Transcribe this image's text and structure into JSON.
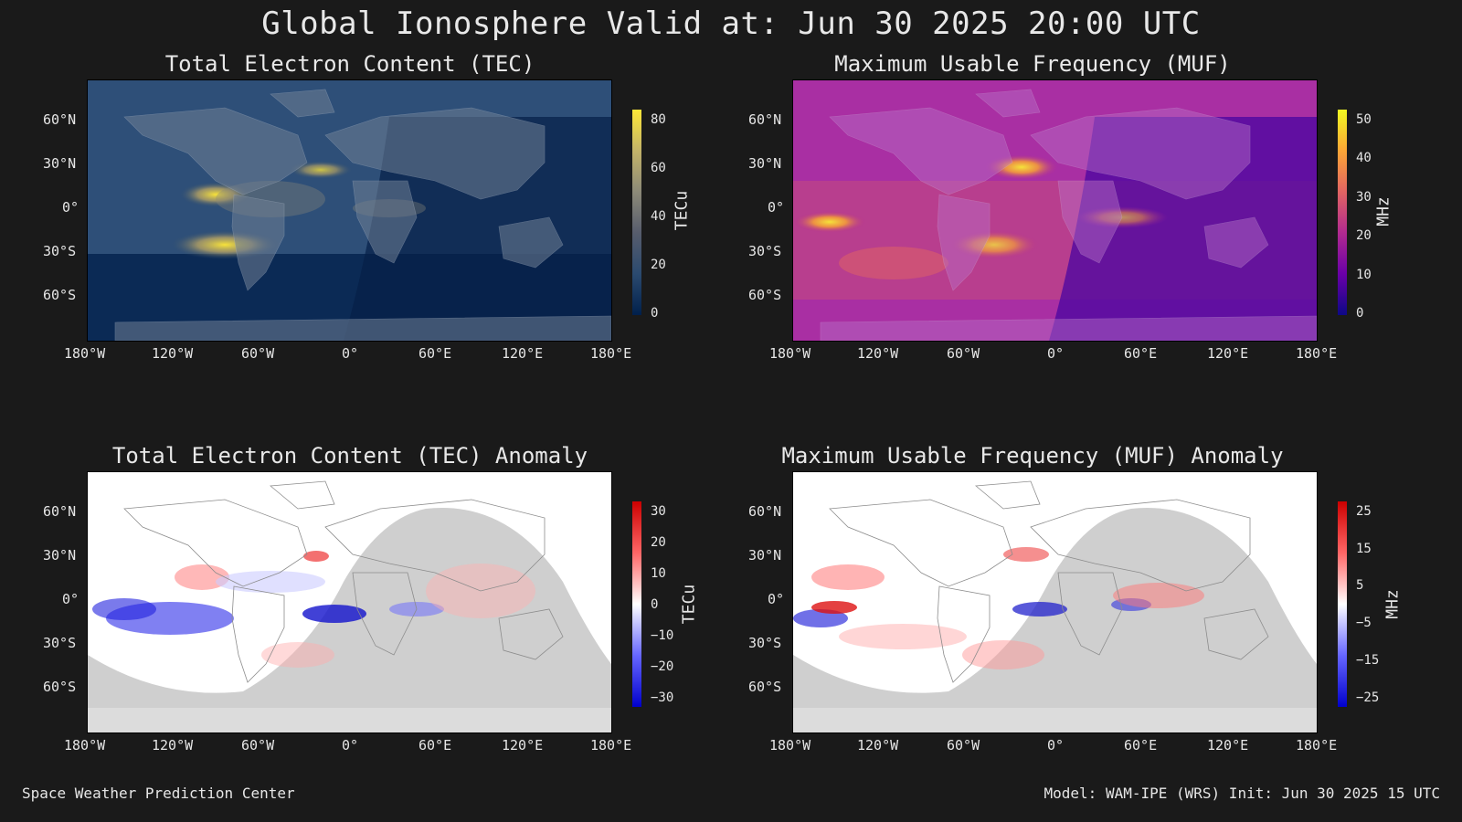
{
  "title": "Global Ionosphere Valid at: Jun 30 2025 20:00 UTC",
  "footer": {
    "left": "Space Weather Prediction Center",
    "right": "Model: WAM-IPE (WRS) Init: Jun 30 2025 15 UTC"
  },
  "axes": {
    "lat_ticks": [
      "60°N",
      "30°N",
      "0°",
      "30°S",
      "60°S"
    ],
    "lon_ticks": [
      "180°W",
      "120°W",
      "60°W",
      "0°",
      "60°E",
      "120°E",
      "180°E"
    ]
  },
  "panels": {
    "tec": {
      "title": "Total Electron Content (TEC)",
      "colorbar_label": "TECu",
      "colorbar_ticks": [
        "80",
        "60",
        "40",
        "20",
        "0"
      ],
      "colormap": [
        "#00204c",
        "#2b4a6f",
        "#575d6d",
        "#8c8a78",
        "#c3b369",
        "#fde737"
      ]
    },
    "muf": {
      "title": "Maximum Usable Frequency (MUF)",
      "colorbar_label": "MHz",
      "colorbar_ticks": [
        "50",
        "40",
        "30",
        "20",
        "10",
        "0"
      ],
      "colormap": [
        "#0d0887",
        "#6a00a8",
        "#b12a90",
        "#e16462",
        "#fca636",
        "#f0f921"
      ]
    },
    "tec_anomaly": {
      "title": "Total Electron Content (TEC) Anomaly",
      "colorbar_label": "TECu",
      "colorbar_ticks": [
        "30",
        "20",
        "10",
        "0",
        "−10",
        "−20",
        "−30"
      ],
      "colormap": [
        "#0000cc",
        "#6666ff",
        "#ccccff",
        "#ffffff",
        "#ffcccc",
        "#ff6666",
        "#cc0000"
      ]
    },
    "muf_anomaly": {
      "title": "Maximum Usable Frequency (MUF) Anomaly",
      "colorbar_label": "MHz",
      "colorbar_ticks": [
        "25",
        "15",
        "5",
        "−5",
        "−15",
        "−25"
      ],
      "colormap": [
        "#0000cc",
        "#6666ff",
        "#ccccff",
        "#ffffff",
        "#ffcccc",
        "#ff6666",
        "#cc0000"
      ]
    }
  }
}
